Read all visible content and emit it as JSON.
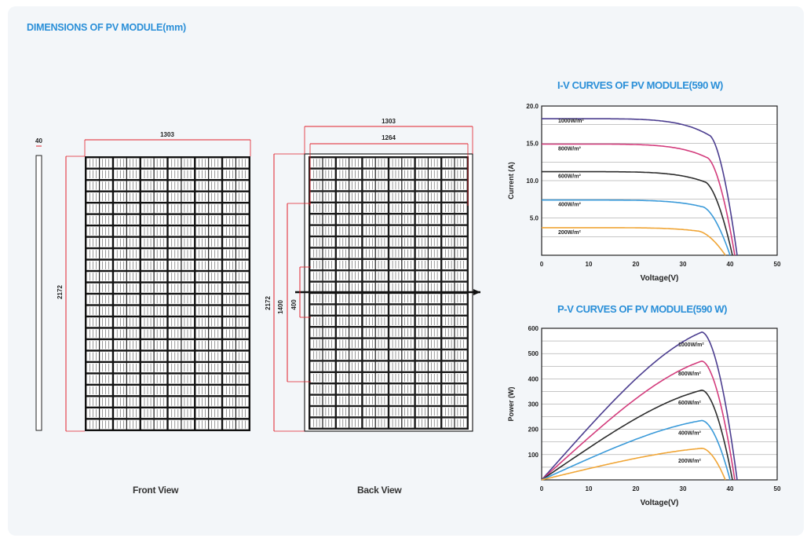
{
  "section_title": "DIMENSIONS OF PV MODULE(mm)",
  "colors": {
    "accent": "#2a8fd8",
    "dim_line": "#e0202a",
    "frame": "#111111"
  },
  "side_view": {
    "thickness": "40"
  },
  "front_view": {
    "label": "Front View",
    "width": "1303",
    "height": "2172"
  },
  "back_view": {
    "label": "Back View",
    "width_outer": "1303",
    "width_inner": "1264",
    "height": "2172",
    "mount_spacing": "1400",
    "mid_spacing": "400"
  },
  "chart_data": [
    {
      "type": "line",
      "title": "I-V CURVES OF PV MODULE(590 W)",
      "xlabel": "Voltage(V)",
      "ylabel": "Current (A)",
      "xlim": [
        0,
        50
      ],
      "ylim": [
        0,
        20
      ],
      "x_ticks": [
        "0",
        "10",
        "20",
        "30",
        "40",
        "50"
      ],
      "y_ticks": [
        "5.0",
        "10.0",
        "15.0",
        "20.0"
      ],
      "grid": true,
      "series": [
        {
          "name": "1000W/m²",
          "color": "#4b3d8f",
          "isc": 18.3,
          "voc": 41.5,
          "knee": 35.5
        },
        {
          "name": "800W/m²",
          "color": "#d33c7c",
          "isc": 14.9,
          "voc": 41.0,
          "knee": 35.0
        },
        {
          "name": "600W/m²",
          "color": "#2d2d2d",
          "isc": 11.2,
          "voc": 40.5,
          "knee": 34.5
        },
        {
          "name": "400W/m²",
          "color": "#3a9ad9",
          "isc": 7.4,
          "voc": 40.0,
          "knee": 34.0
        },
        {
          "name": "200W/m²",
          "color": "#f0a535",
          "isc": 3.7,
          "voc": 39.0,
          "knee": 33.0
        }
      ]
    },
    {
      "type": "line",
      "title": "P-V CURVES OF PV MODULE(590 W)",
      "xlabel": "Voltage(V)",
      "ylabel": "Power (W)",
      "xlim": [
        0,
        50
      ],
      "ylim": [
        0,
        600
      ],
      "x_ticks": [
        "0",
        "10",
        "20",
        "30",
        "40",
        "50"
      ],
      "y_ticks": [
        "100",
        "200",
        "300",
        "400",
        "500",
        "600"
      ],
      "grid": true,
      "series": [
        {
          "name": "1000W/m²",
          "color": "#4b3d8f",
          "pmax": 585,
          "vmp": 34,
          "voc": 41.5
        },
        {
          "name": "800W/m²",
          "color": "#d33c7c",
          "pmax": 470,
          "vmp": 34,
          "voc": 41.0
        },
        {
          "name": "600W/m²",
          "color": "#2d2d2d",
          "pmax": 355,
          "vmp": 34,
          "voc": 40.5
        },
        {
          "name": "400W/m²",
          "color": "#3a9ad9",
          "pmax": 235,
          "vmp": 34,
          "voc": 40.0
        },
        {
          "name": "200W/m²",
          "color": "#f0a535",
          "pmax": 125,
          "vmp": 34,
          "voc": 39.0
        }
      ]
    }
  ]
}
